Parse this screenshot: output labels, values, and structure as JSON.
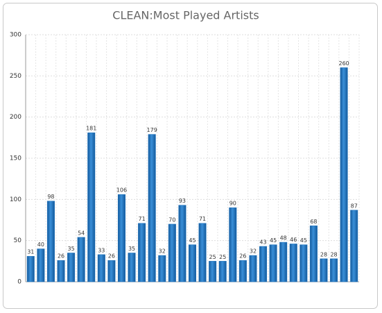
{
  "chart_data": {
    "type": "bar",
    "title": "CLEAN:Most Played Artists",
    "categories": [
      null,
      null,
      null,
      null,
      null,
      null,
      null,
      null,
      null,
      null,
      null,
      null,
      null,
      null,
      null,
      null,
      null,
      null,
      null,
      null,
      null,
      null,
      null,
      null,
      null,
      null,
      null,
      null,
      null,
      null,
      null,
      null,
      null
    ],
    "values": [
      31,
      40,
      98,
      26,
      35,
      54,
      181,
      33,
      26,
      106,
      35,
      71,
      179,
      32,
      70,
      93,
      45,
      71,
      25,
      25,
      90,
      26,
      32,
      43,
      45,
      48,
      46,
      45,
      68,
      28,
      28,
      260,
      87
    ],
    "color": "#1e73be",
    "ylim": [
      0,
      300
    ],
    "yticks": [
      0,
      50,
      100,
      150,
      200,
      250,
      300
    ],
    "grid": true
  }
}
